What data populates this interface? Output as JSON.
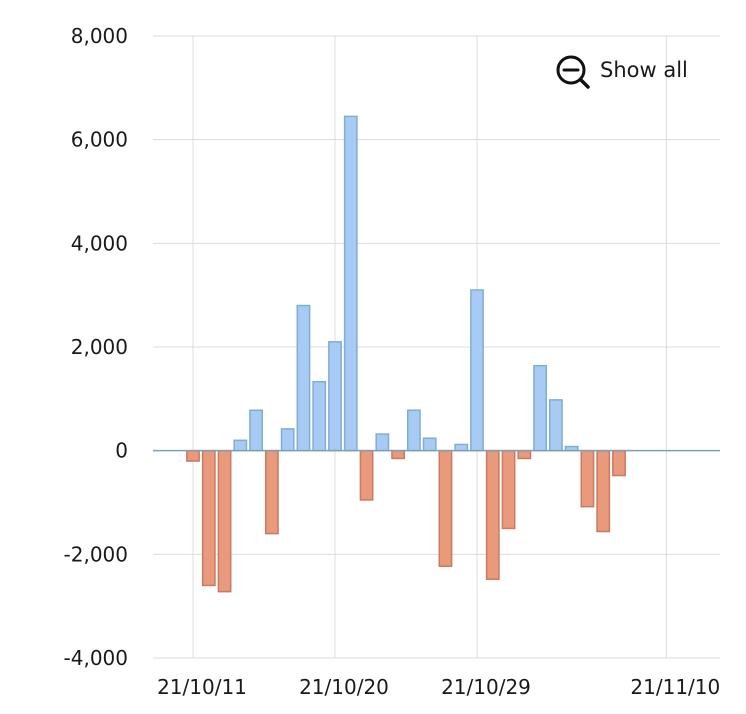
{
  "show_all_label": "Show all",
  "colors": {
    "positive_fill": "#a8cbf5",
    "positive_stroke": "#7faed0",
    "negative_fill": "#e99a7d",
    "negative_stroke": "#c97a60",
    "grid": "#dcdcdc",
    "text": "#1a1a1a"
  },
  "chart_data": {
    "type": "bar",
    "xlabel": "",
    "ylabel": "",
    "ylim": [
      -4000,
      8000
    ],
    "y_ticks": [
      8000,
      6000,
      4000,
      2000,
      0,
      -2000,
      -4000
    ],
    "y_tick_labels": [
      "8,000",
      "6,000",
      "4,000",
      "2,000",
      "0",
      "-2,000",
      "-4,000"
    ],
    "x_tick_labels": [
      "21/10/11",
      "21/10/20",
      "21/10/29",
      "21/11/10"
    ],
    "x_tick_dates": [
      "2021-10-11",
      "2021-10-20",
      "2021-10-29",
      "2021-11-10"
    ],
    "grid": true,
    "series": [
      {
        "x": [
          "2021-10-09",
          "2021-10-10",
          "2021-10-11",
          "2021-10-12",
          "2021-10-13",
          "2021-10-14",
          "2021-10-15",
          "2021-10-16",
          "2021-10-17",
          "2021-10-18",
          "2021-10-19",
          "2021-10-20",
          "2021-10-21",
          "2021-10-22",
          "2021-10-23",
          "2021-10-24",
          "2021-10-25",
          "2021-10-26",
          "2021-10-27",
          "2021-10-28",
          "2021-10-29",
          "2021-10-30",
          "2021-10-31",
          "2021-11-01",
          "2021-11-02",
          "2021-11-03",
          "2021-11-04",
          "2021-11-05",
          "2021-11-06",
          "2021-11-07",
          "2021-11-08",
          "2021-11-09",
          "2021-11-10",
          "2021-11-11",
          "2021-11-12",
          "2021-11-13",
          "2021-11-14",
          "2021-11-15",
          "2021-11-16",
          "2021-11-17"
        ],
        "values": [
          null,
          null,
          -200,
          -2600,
          -2720,
          200,
          780,
          -1600,
          420,
          2800,
          1330,
          2100,
          6450,
          -950,
          320,
          -150,
          780,
          240,
          -2230,
          120,
          3100,
          -2480,
          -1500,
          -150,
          1640,
          980,
          80,
          -1080,
          -1560,
          -480,
          null,
          null,
          null,
          null,
          null,
          null,
          null,
          null,
          null,
          null
        ]
      }
    ]
  }
}
